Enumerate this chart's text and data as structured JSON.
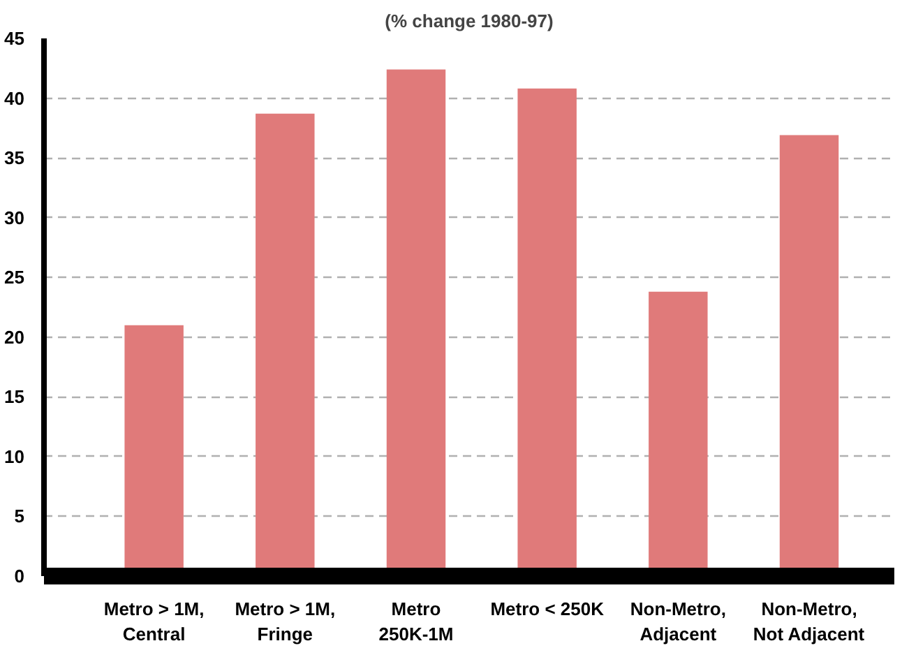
{
  "chart_data": {
    "type": "bar",
    "title": "(% change 1980-97)",
    "categories": [
      "Metro > 1M, Central",
      "Metro > 1M, Fringe",
      "Metro 250K-1M",
      "Metro < 250K",
      "Non-Metro, Adjacent",
      "Non-Metro, Not Adjacent"
    ],
    "values": [
      21,
      38.7,
      42.4,
      40.8,
      23.8,
      36.9
    ],
    "color": "#e07a7a",
    "ylim": [
      0,
      45
    ],
    "yticks": [
      0,
      5,
      10,
      15,
      20,
      25,
      30,
      35,
      40,
      45
    ],
    "grid": "y"
  }
}
